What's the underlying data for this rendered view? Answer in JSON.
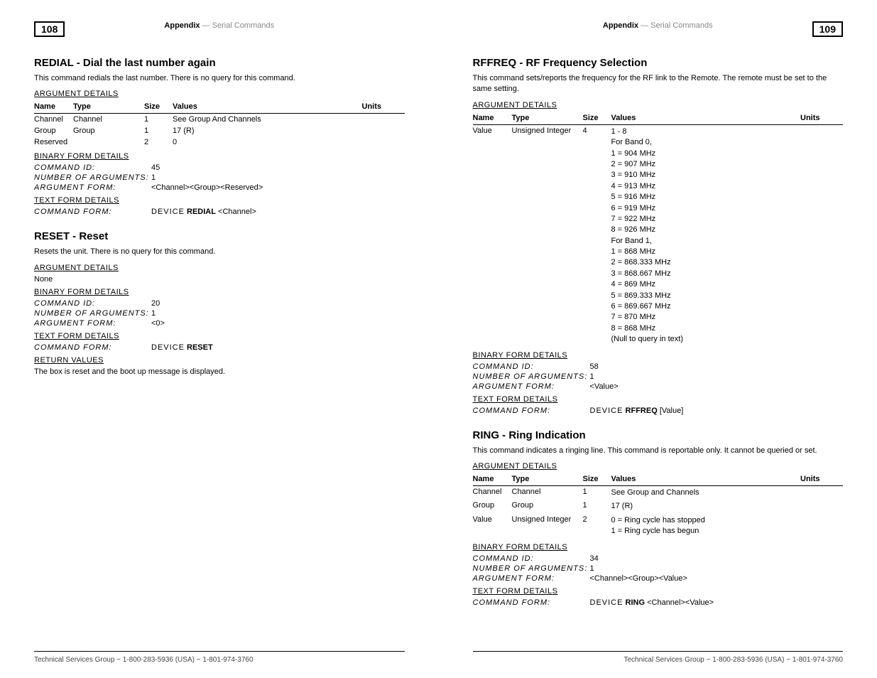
{
  "header": {
    "appendix": "Appendix",
    "dash": " — ",
    "subtitle": "Serial Commands",
    "page_left": "108",
    "page_right": "109"
  },
  "footer": "Technical Services Group ~ 1-800-283-5936 (USA) ~ 1-801-974-3760",
  "labels": {
    "arg_details": "ARGUMENT DETAILS",
    "bin_details": "BINARY FORM DETAILS",
    "txt_details": "TEXT FORM DETAILS",
    "ret_values": "RETURN VALUES",
    "cmd_id": "COMMAND ID:",
    "num_args": "NUMBER OF ARGUMENTS:",
    "arg_form": "ARGUMENT FORM:",
    "cmd_form": "COMMAND FORM:",
    "col_name": "Name",
    "col_type": "Type",
    "col_size": "Size",
    "col_values": "Values",
    "col_units": "Units",
    "none": "None",
    "device": "DEVICE"
  },
  "redial": {
    "title": "REDIAL - Dial the last number again",
    "desc": "This command redials the last number. There is no query for this command.",
    "rows": [
      {
        "name": "Channel",
        "type": "Channel",
        "size": "1",
        "values": "See Group And Channels",
        "units": ""
      },
      {
        "name": "Group",
        "type": "Group",
        "size": "1",
        "values": "17 (R)",
        "units": ""
      },
      {
        "name": "Reserved",
        "type": "",
        "size": "2",
        "values": "0",
        "units": ""
      }
    ],
    "cmd_id": "45",
    "num_args": "1",
    "arg_form": "<Channel><Group><Reserved>",
    "cmd_name": "REDIAL",
    "cmd_suffix": " <Channel>"
  },
  "reset": {
    "title": "RESET - Reset",
    "desc": "Resets the unit. There is no query for this command.",
    "cmd_id": "20",
    "num_args": "1",
    "arg_form": "<0>",
    "cmd_name": "RESET",
    "cmd_suffix": "",
    "return_text": "The box is reset and the boot up message is displayed."
  },
  "rffreq": {
    "title": "RFFREQ - RF Frequency Selection",
    "desc": "This command sets/reports the frequency for the RF link to the Remote. The remote must be set to the same setting.",
    "row_name": "Value",
    "row_type": "Unsigned Integer",
    "row_size": "4",
    "values_lines": [
      "1 - 8",
      "For Band 0,",
      "1 = 904 MHz",
      "2 = 907 MHz",
      "3 = 910 MHz",
      "4 = 913 MHz",
      "5 = 916 MHz",
      "6 = 919 MHz",
      "7 = 922 MHz",
      "8 = 926 MHz",
      "For Band 1,",
      "1 = 868 MHz",
      "2 = 868.333 MHz",
      "3 = 868.667 MHz",
      "4 = 869 MHz",
      "5 = 869.333 MHz",
      "6 = 869.667 MHz",
      "7 = 870 MHz",
      "8 = 868 MHz",
      "(Null to query in text)"
    ],
    "cmd_id": "58",
    "num_args": "1",
    "arg_form": "<Value>",
    "cmd_name": "RFFREQ",
    "cmd_suffix": " [Value]"
  },
  "ring": {
    "title": "RING - Ring Indication",
    "desc": "This command indicates a ringing line. This command is reportable only. It cannot be queried or set.",
    "rows": [
      {
        "name": "Channel",
        "type": "Channel",
        "size": "1",
        "values": [
          "See Group and Channels"
        ],
        "units": ""
      },
      {
        "name": "Group",
        "type": "Group",
        "size": "1",
        "values": [
          "17 (R)"
        ],
        "units": ""
      },
      {
        "name": "Value",
        "type": "Unsigned Integer",
        "size": "2",
        "values": [
          "0 = Ring cycle has stopped",
          "1 = Ring cycle has begun"
        ],
        "units": ""
      }
    ],
    "cmd_id": "34",
    "num_args": "1",
    "arg_form": "<Channel><Group><Value>",
    "cmd_name": "RING",
    "cmd_suffix": " <Channel><Value>"
  }
}
